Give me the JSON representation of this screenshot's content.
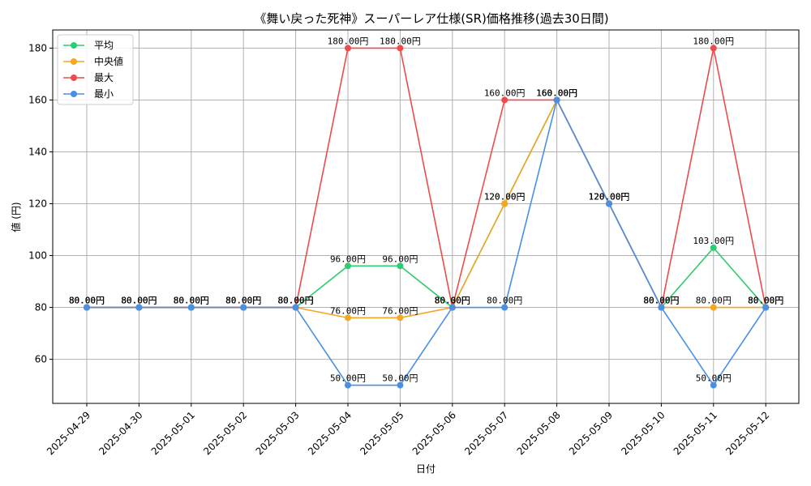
{
  "chart_data": {
    "type": "line",
    "title": "《舞い戻った死神》スーパーレア仕様(SR)価格推移(過去30日間)",
    "xlabel": "日付",
    "ylabel": "値 (円)",
    "categories": [
      "2025-04-29",
      "2025-04-30",
      "2025-05-01",
      "2025-05-02",
      "2025-05-03",
      "2025-05-04",
      "2025-05-05",
      "2025-05-06",
      "2025-05-07",
      "2025-05-08",
      "2025-05-09",
      "2025-05-10",
      "2025-05-11",
      "2025-05-12"
    ],
    "ylim": [
      43,
      187
    ],
    "yticks": [
      60,
      80,
      100,
      120,
      140,
      160,
      180
    ],
    "grid": true,
    "legend_position": "top-left",
    "value_suffix": "円",
    "series": [
      {
        "name": "平均",
        "color": "#2ecc71",
        "values": [
          80,
          80,
          80,
          80,
          80,
          96,
          96,
          80,
          120,
          160,
          120,
          80,
          103,
          80
        ]
      },
      {
        "name": "中央値",
        "color": "#f5a623",
        "values": [
          80,
          80,
          80,
          80,
          80,
          76,
          76,
          80,
          120,
          160,
          120,
          80,
          80,
          80
        ]
      },
      {
        "name": "最大",
        "color": "#ef4b4b",
        "values": [
          80,
          80,
          80,
          80,
          80,
          180,
          180,
          80,
          160,
          160,
          120,
          80,
          180,
          80
        ]
      },
      {
        "name": "最小",
        "color": "#4a90e2",
        "values": [
          80,
          80,
          80,
          80,
          80,
          50,
          50,
          80,
          80,
          160,
          120,
          80,
          50,
          80
        ]
      }
    ]
  }
}
